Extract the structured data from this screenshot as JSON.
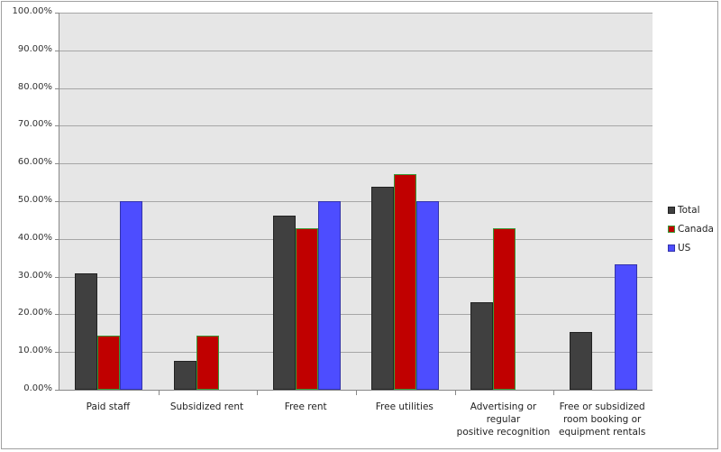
{
  "chart_data": {
    "type": "bar",
    "title": "",
    "xlabel": "",
    "ylabel": "",
    "ylim": [
      0,
      100
    ],
    "yticks": [
      "0.00%",
      "10.00%",
      "20.00%",
      "30.00%",
      "40.00%",
      "50.00%",
      "60.00%",
      "70.00%",
      "80.00%",
      "90.00%",
      "100.00%"
    ],
    "grid": true,
    "legend_position": "right",
    "categories": [
      "Paid staff",
      "Subsidized rent",
      "Free rent",
      "Free utilities",
      "Advertising or regular positive recognition",
      "Free or subsidized room booking or equipment rentals"
    ],
    "category_lines": [
      [
        "Paid staff"
      ],
      [
        "Subsidized rent"
      ],
      [
        "Free rent"
      ],
      [
        "Free utilities"
      ],
      [
        "Advertising or regular",
        "positive recognition"
      ],
      [
        "Free or subsidized",
        "room booking or",
        "equipment rentals"
      ]
    ],
    "series": [
      {
        "name": "Total",
        "color": "#404040",
        "border": "#222222",
        "values": [
          30.8,
          7.7,
          46.2,
          53.8,
          23.1,
          15.4
        ]
      },
      {
        "name": "Canada",
        "color": "#c00000",
        "border": "#3a9a3a",
        "values": [
          14.3,
          14.3,
          42.9,
          57.1,
          42.9,
          0
        ]
      },
      {
        "name": "US",
        "color": "#4d4dff",
        "border": "#3333aa",
        "values": [
          50.0,
          0,
          50.0,
          50.0,
          0,
          33.3
        ]
      }
    ]
  }
}
